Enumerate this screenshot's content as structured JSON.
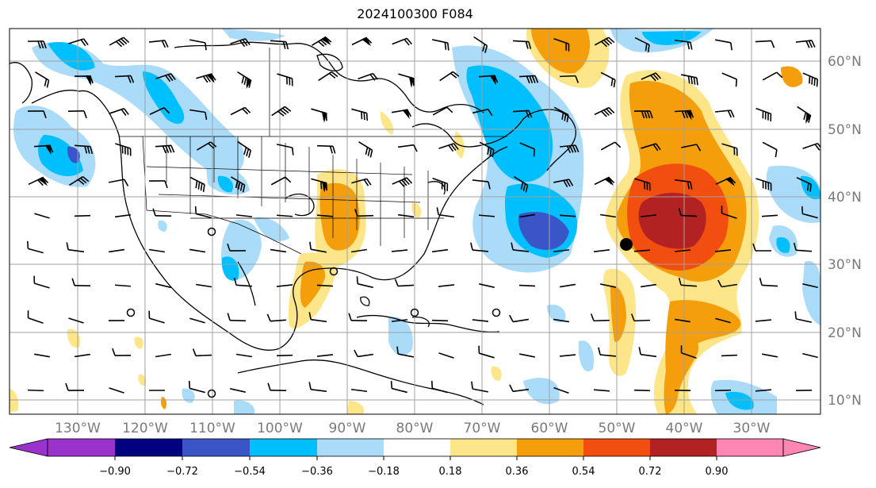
{
  "title": "2024100300 F084",
  "colors": {
    "neg_090": "#9933cc",
    "neg_072": "#000080",
    "neg_054": "#3a55c8",
    "neg_036": "#00bfff",
    "neg_018": "#aadcfa",
    "zero": "#ffffff",
    "pos_018": "#fde68a",
    "pos_036": "#f59e0b",
    "pos_054": "#f24e0f",
    "pos_072": "#b22222",
    "pos_090": "#ff85b3",
    "grid": "#a0a0a0",
    "coast": "#000000"
  },
  "lat_labels": [
    "60°N",
    "50°N",
    "40°N",
    "30°N",
    "20°N",
    "10°N"
  ],
  "lon_labels": [
    "130°W",
    "120°W",
    "110°W",
    "100°W",
    "90°W",
    "80°W",
    "70°W",
    "60°W",
    "50°W",
    "40°W",
    "30°W"
  ],
  "colorbar": {
    "ticks": [
      "−0.90",
      "−0.72",
      "−0.54",
      "−0.36",
      "−0.18",
      "0.18",
      "0.36",
      "0.54",
      "0.72",
      "0.90"
    ]
  }
}
